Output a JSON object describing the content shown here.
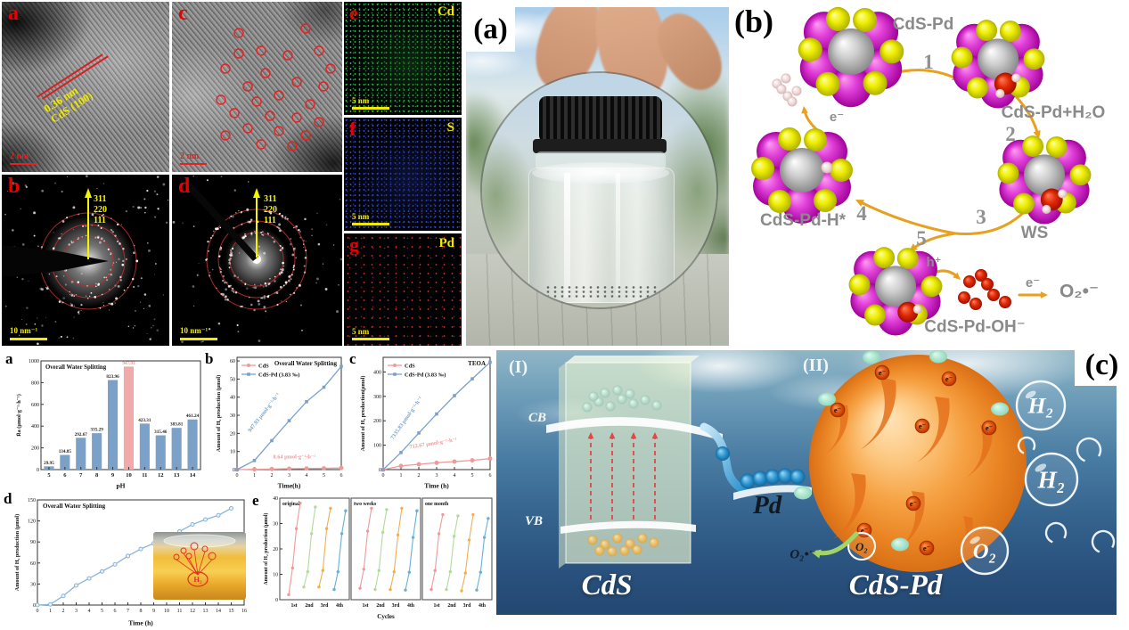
{
  "tem": {
    "a": {
      "letter": "a",
      "d_spacing": "0.36 nm",
      "plane": "CdS (100)",
      "scale": "2 nm"
    },
    "c": {
      "letter": "c",
      "scale": "2 nm"
    },
    "b": {
      "letter": "b"
    },
    "d": {
      "letter": "d"
    },
    "saed_rings": [
      "311",
      "220",
      "111"
    ],
    "saed_scale": "10 nm⁻¹",
    "eds": [
      {
        "letter": "e",
        "element": "Cd",
        "scale": "5 nm",
        "dot_color": "#28c850"
      },
      {
        "letter": "f",
        "element": "S",
        "scale": "5 nm",
        "dot_color": "#3448e8"
      },
      {
        "letter": "g",
        "element": "Pd",
        "scale": "5 nm",
        "dot_color": "#d83028"
      }
    ]
  },
  "photo": {
    "label": "(a)"
  },
  "cycle": {
    "label": "(b)",
    "species": {
      "top": "CdS-Pd",
      "right_top": "CdS-Pd+H₂O",
      "right": "WS",
      "left": "CdS-Pd-H*",
      "bottom": "CdS-Pd-OH⁻"
    },
    "steps": [
      "1",
      "2",
      "3",
      "4",
      "5"
    ],
    "electron": "e⁻",
    "hole": "h⁺",
    "superoxide": "O₂•⁻",
    "arrow_color": "#e8a020"
  },
  "schematic": {
    "label": "(c)",
    "region_i": "(I)",
    "region_ii": "(II)",
    "cb": "CB",
    "vb": "VB",
    "cds": "CdS",
    "pd": "Pd",
    "cds_pd": "CdS-Pd",
    "h2": "H₂",
    "o2": "O₂",
    "superoxide": "O₂•⁻",
    "electron": "e⁻"
  },
  "chart_data": [
    {
      "panel_letter": "a",
      "type": "bar",
      "title": "Overall Water Splitting",
      "categories": [
        "5",
        "6",
        "7",
        "8",
        "9",
        "10",
        "11",
        "12",
        "13",
        "14"
      ],
      "values": [
        29.95,
        134.85,
        292.67,
        335.29,
        823.96,
        947.93,
        423.31,
        315.46,
        383.81,
        461.24
      ],
      "highlight_index": 5,
      "xlabel": "pH",
      "ylabel": "R̄a (μmol·g⁻¹·h⁻¹)",
      "ylim": [
        0,
        1000
      ],
      "yticks": [
        0,
        200,
        400,
        600,
        800,
        1000
      ],
      "bar_color": "#7ba1c9",
      "highlight_color": "#f2a9a9",
      "highlight_label_color": "#ef8d8d"
    },
    {
      "panel_letter": "b",
      "type": "line",
      "title": "Overall Water Splitting",
      "x": [
        0,
        1,
        2,
        3,
        4,
        5,
        6
      ],
      "series": [
        {
          "name": "CdS",
          "color": "#ef9a9a",
          "values": [
            0,
            0.2,
            0.3,
            0.5,
            0.6,
            0.7,
            0.9
          ],
          "annotation": "8.64 μmol·g⁻¹·h⁻¹"
        },
        {
          "name": "CdS-Pd (3.83 ‰)",
          "color": "#7ba1c9",
          "values": [
            0,
            5,
            16,
            27,
            37.5,
            45.5,
            57
          ],
          "annotation": "947.93 μmol·g⁻¹·h⁻¹"
        }
      ],
      "xlabel": "Time(h)",
      "ylabel": "Amount of H₂ production (μmol)",
      "ylim": [
        0,
        62
      ],
      "yticks": [
        0,
        10,
        20,
        30,
        40,
        50,
        60
      ]
    },
    {
      "panel_letter": "c",
      "type": "line",
      "title": "TEOA",
      "x": [
        0,
        1,
        2,
        3,
        4,
        5,
        6
      ],
      "series": [
        {
          "name": "CdS",
          "color": "#ef9a9a",
          "values": [
            0,
            15,
            22,
            28,
            33,
            38,
            45
          ],
          "annotation": "712.67 μmol·g⁻¹·h⁻¹"
        },
        {
          "name": "CdS-Pd (3.83 ‰)",
          "color": "#7ba1c9",
          "values": [
            0,
            70,
            150,
            228,
            303,
            372,
            440
          ],
          "annotation": "7335.83 μmol·g⁻¹·h⁻¹"
        }
      ],
      "xlabel": "Time (h)",
      "ylabel": "Amount of H₂ production(μmol)",
      "ylim": [
        0,
        460
      ],
      "yticks": [
        0,
        100,
        200,
        300,
        400
      ]
    },
    {
      "panel_letter": "d",
      "type": "line",
      "title": "Overall Water Splitting",
      "x": [
        0,
        1,
        2,
        3,
        4,
        5,
        6,
        7,
        8,
        9,
        10,
        11,
        12,
        13,
        14,
        15
      ],
      "series": [
        {
          "name": "CdS-Pd",
          "color": "#8ab4d8",
          "values": [
            0,
            1,
            13,
            28,
            38,
            48,
            58,
            70,
            80,
            88,
            97,
            105,
            115,
            122,
            128,
            138
          ]
        }
      ],
      "xlabel": "Time (h)",
      "ylabel": "Amount of H₂ production (μmol)",
      "xlim": [
        0,
        16
      ],
      "xticks": [
        0,
        1,
        2,
        3,
        4,
        5,
        6,
        7,
        8,
        9,
        10,
        11,
        12,
        13,
        14,
        15,
        16
      ],
      "ylim": [
        0,
        150
      ],
      "yticks": [
        0,
        30,
        60,
        90,
        120,
        150
      ],
      "inset": {
        "label": "H₂"
      }
    },
    {
      "panel_letter": "e",
      "type": "cycle-line",
      "subpanels": [
        {
          "title": "original",
          "cycles": [
            [
              2,
              12.5,
              28,
              38
            ],
            [
              5,
              11,
              26,
              36.5
            ],
            [
              5,
              11.5,
              28,
              36
            ],
            [
              4,
              11,
              26,
              35
            ]
          ]
        },
        {
          "title": "two weeks",
          "cycles": [
            [
              4.5,
              12,
              27,
              36
            ],
            [
              4,
              11.5,
              26.5,
              35.5
            ],
            [
              4,
              11,
              25.5,
              36
            ],
            [
              3.8,
              10.8,
              24.5,
              35
            ]
          ]
        },
        {
          "title": "one month",
          "cycles": [
            [
              4,
              11.5,
              26,
              33.5
            ],
            [
              4,
              11,
              25,
              33
            ],
            [
              3.5,
              10.5,
              23.5,
              33.5
            ],
            [
              3.8,
              10.8,
              24.5,
              32
            ]
          ]
        }
      ],
      "cycle_labels": [
        "1st",
        "2nd",
        "3rd",
        "4th"
      ],
      "cycle_colors": [
        "#ef9a9a",
        "#b5d99c",
        "#f0b050",
        "#6baed6"
      ],
      "xlabel": "Cycles",
      "ylabel": "Amount of H₂ production (μmol)",
      "ylim": [
        0,
        40
      ],
      "yticks": [
        0,
        10,
        20,
        30,
        40
      ]
    }
  ]
}
